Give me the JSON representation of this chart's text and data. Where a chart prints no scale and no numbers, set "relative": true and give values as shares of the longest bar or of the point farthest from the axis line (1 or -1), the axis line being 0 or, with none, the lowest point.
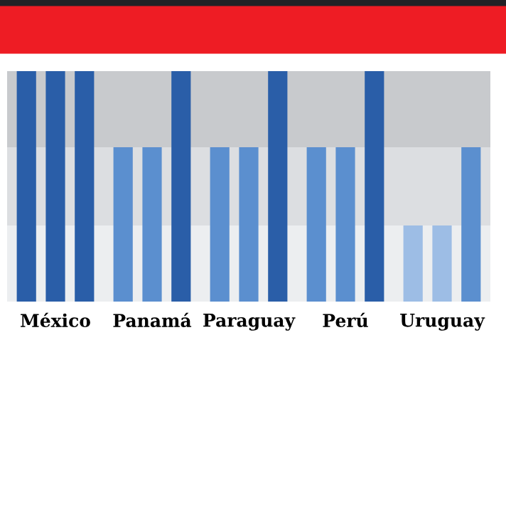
{
  "chart_data": {
    "type": "bar",
    "relative": true,
    "categories": [
      "México",
      "Panamá",
      "Paraguay",
      "Perú",
      "Uruguay"
    ],
    "series": [
      {
        "colors": [
          "#2a5ea8",
          "#5b8fcf",
          "#5b8fcf",
          "#5b8fcf",
          "#9dbde5"
        ],
        "values": [
          1,
          0.67,
          0.67,
          0.67,
          0.33
        ]
      },
      {
        "colors": [
          "#2a5ea8",
          "#5b8fcf",
          "#5b8fcf",
          "#5b8fcf",
          "#9dbde5"
        ],
        "values": [
          1,
          0.67,
          0.67,
          0.67,
          0.33
        ]
      },
      {
        "colors": [
          "#2a5ea8",
          "#2a5ea8",
          "#2a5ea8",
          "#2a5ea8",
          "#5b8fcf"
        ],
        "values": [
          1,
          1,
          1,
          1,
          0.67
        ]
      }
    ],
    "bands": [
      {
        "axis": "y",
        "from": 0.67,
        "to": 1,
        "color": "#c8cacd"
      },
      {
        "axis": "y",
        "from": 0.33,
        "to": 0.67,
        "color": "#dcdee1"
      },
      {
        "axis": "y",
        "from": 0,
        "to": 0.33,
        "color": "#eceef0"
      }
    ],
    "grid": false,
    "legend": false
  }
}
